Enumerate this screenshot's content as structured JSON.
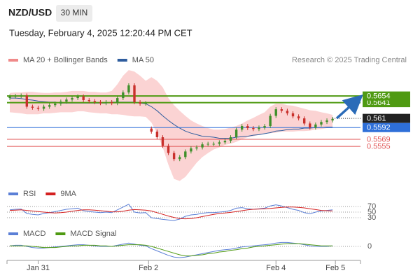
{
  "header": {
    "symbol": "NZD/USD",
    "timeframe": "30 MIN",
    "timestamp": "Tuesday, February 4, 2025 12:20:44 PM CET"
  },
  "chart_data": [
    {
      "type": "candlestick",
      "credit": "Research © 2025 Trading Central",
      "xlim": [
        -0.5,
        62.3
      ],
      "ylim": [
        0.5485,
        0.5712
      ],
      "up_color": "#3f8f2a",
      "down_color": "#c9302c",
      "open": [
        0.565,
        0.5653,
        0.5654,
        0.5655,
        0.5633,
        0.5631,
        0.5629,
        0.5633,
        0.5636,
        0.5639,
        0.5643,
        0.5647,
        0.565,
        0.5653,
        0.5646,
        0.5644,
        0.5642,
        0.564,
        0.5642,
        0.564,
        0.565,
        0.5661,
        0.5675,
        0.5642,
        0.5639,
        0.559,
        0.5584,
        0.5573,
        0.5556,
        0.5542,
        0.553,
        0.5534,
        0.5545,
        0.5551,
        0.5553,
        0.5559,
        0.556,
        0.556,
        0.5563,
        0.5566,
        0.5573,
        0.5588,
        0.5595,
        0.5591,
        0.5589,
        0.5592,
        0.5595,
        0.5615,
        0.5628,
        0.5625,
        0.562,
        0.5614,
        0.561,
        0.56,
        0.5592,
        0.5598,
        0.5603,
        0.5606
      ],
      "high": [
        0.5657,
        0.5658,
        0.5659,
        0.5659,
        0.5637,
        0.5635,
        0.5637,
        0.564,
        0.5643,
        0.5647,
        0.5651,
        0.5654,
        0.5657,
        0.5657,
        0.565,
        0.5648,
        0.5646,
        0.5646,
        0.5646,
        0.5654,
        0.5665,
        0.5679,
        0.5679,
        0.5646,
        0.5644,
        0.5594,
        0.5588,
        0.5577,
        0.556,
        0.5546,
        0.5538,
        0.5549,
        0.5555,
        0.5557,
        0.5563,
        0.5564,
        0.5564,
        0.5567,
        0.557,
        0.5577,
        0.5592,
        0.5599,
        0.5599,
        0.5595,
        0.5596,
        0.5599,
        0.5619,
        0.5632,
        0.5632,
        0.5629,
        0.5624,
        0.5618,
        0.5614,
        0.5604,
        0.5602,
        0.5607,
        0.561,
        0.5613
      ],
      "low": [
        0.5646,
        0.5649,
        0.565,
        0.5629,
        0.5627,
        0.5625,
        0.5625,
        0.5629,
        0.5632,
        0.5635,
        0.5639,
        0.5643,
        0.5646,
        0.5642,
        0.564,
        0.5638,
        0.5636,
        0.5636,
        0.5636,
        0.5636,
        0.5646,
        0.5657,
        0.5638,
        0.5635,
        0.5635,
        0.558,
        0.5569,
        0.5552,
        0.5538,
        0.5526,
        0.5526,
        0.553,
        0.5541,
        0.5547,
        0.5549,
        0.5555,
        0.5556,
        0.5556,
        0.5559,
        0.5562,
        0.5569,
        0.5584,
        0.5587,
        0.5585,
        0.5585,
        0.5588,
        0.5591,
        0.5611,
        0.5621,
        0.5616,
        0.561,
        0.5606,
        0.5596,
        0.5588,
        0.5588,
        0.5594,
        0.5599,
        0.5602
      ],
      "close": [
        0.5653,
        0.5654,
        0.5655,
        0.5633,
        0.5631,
        0.5629,
        0.5633,
        0.5636,
        0.5639,
        0.5643,
        0.5647,
        0.565,
        0.5653,
        0.5646,
        0.5644,
        0.5642,
        0.564,
        0.5642,
        0.564,
        0.565,
        0.5661,
        0.5675,
        0.5642,
        0.5639,
        0.564,
        0.5584,
        0.5573,
        0.5556,
        0.5542,
        0.553,
        0.5534,
        0.5545,
        0.5551,
        0.5553,
        0.5559,
        0.556,
        0.556,
        0.5563,
        0.5566,
        0.5573,
        0.5588,
        0.5595,
        0.5591,
        0.5589,
        0.5592,
        0.5595,
        0.5615,
        0.5628,
        0.5625,
        0.562,
        0.5614,
        0.561,
        0.56,
        0.5592,
        0.5598,
        0.5603,
        0.5606,
        0.5609
      ],
      "series": [
        {
          "name": "MA 20 + Bollinger Bands",
          "color": "#f08a8a",
          "fill": "#fbd3d3",
          "upper": [
            0.566,
            0.5661,
            0.5661,
            0.5662,
            0.5662,
            0.5661,
            0.566,
            0.566,
            0.5661,
            0.5661,
            0.5662,
            0.5664,
            0.5664,
            0.5664,
            0.5662,
            0.5662,
            0.5661,
            0.5661,
            0.5664,
            0.5677,
            0.5694,
            0.5705,
            0.5702,
            0.5694,
            0.5684,
            0.5691,
            0.5684,
            0.5671,
            0.565,
            0.5636,
            0.5625,
            0.5615,
            0.5606,
            0.56,
            0.5595,
            0.5591,
            0.5588,
            0.5588,
            0.5589,
            0.5592,
            0.5595,
            0.56,
            0.5606,
            0.5611,
            0.5617,
            0.5622,
            0.5633,
            0.5639,
            0.5639,
            0.5636,
            0.5635,
            0.5632,
            0.5629,
            0.5626,
            0.5625,
            0.5622,
            0.562,
            0.5617
          ],
          "lower": [
            0.5622,
            0.5621,
            0.562,
            0.5618,
            0.5618,
            0.5618,
            0.562,
            0.562,
            0.5621,
            0.5622,
            0.5622,
            0.5622,
            0.5624,
            0.5624,
            0.5622,
            0.5621,
            0.562,
            0.562,
            0.5618,
            0.5618,
            0.5617,
            0.5615,
            0.5614,
            0.5614,
            0.5613,
            0.5602,
            0.5581,
            0.5553,
            0.5519,
            0.5491,
            0.5487,
            0.5495,
            0.5509,
            0.5523,
            0.5534,
            0.5542,
            0.5549,
            0.5553,
            0.5558,
            0.556,
            0.5564,
            0.5569,
            0.5573,
            0.5575,
            0.5578,
            0.5581,
            0.5581,
            0.5582,
            0.5584,
            0.5584,
            0.5584,
            0.5585,
            0.5585,
            0.5586,
            0.5588,
            0.5589,
            0.5591,
            0.5592
          ]
        },
        {
          "name": "MA 50",
          "color": "#2f5d9e",
          "values": [
            0.565,
            0.565,
            0.5649,
            0.5647,
            0.5646,
            0.5644,
            0.5643,
            0.5642,
            0.5642,
            0.564,
            0.564,
            0.564,
            0.564,
            0.564,
            0.564,
            0.564,
            0.564,
            0.564,
            0.5642,
            0.5642,
            0.5642,
            0.5642,
            0.5642,
            0.564,
            0.5639,
            0.5633,
            0.5625,
            0.5615,
            0.5606,
            0.5598,
            0.5591,
            0.5585,
            0.5581,
            0.5578,
            0.5575,
            0.5574,
            0.5573,
            0.5571,
            0.5571,
            0.5571,
            0.5573,
            0.5574,
            0.5575,
            0.5577,
            0.5578,
            0.558,
            0.5582,
            0.5585,
            0.5586,
            0.5588,
            0.5589,
            0.5589,
            0.5591,
            0.5591,
            0.5592,
            0.5592,
            0.5593,
            0.5593
          ]
        }
      ],
      "levels": [
        {
          "value": 0.5641,
          "color": "#4f9a12",
          "line": "solid",
          "boxed": true
        },
        {
          "value": 0.5654,
          "color": "#4f9a12",
          "line": "solid",
          "boxed": true
        },
        {
          "value": 0.561,
          "color": "#222222",
          "line": "dotted",
          "boxed": true
        },
        {
          "value": 0.5592,
          "color": "#2e6fd8",
          "line": "solid",
          "boxed": true
        },
        {
          "value": 0.5569,
          "color": "#e05555",
          "line": "solid",
          "boxed": false
        },
        {
          "value": 0.5555,
          "color": "#e05555",
          "line": "solid",
          "boxed": false
        }
      ]
    },
    {
      "type": "line",
      "ylim": [
        10,
        85
      ],
      "yticks": [
        70,
        50,
        30
      ],
      "grid": "dotted",
      "series": [
        {
          "name": "RSI",
          "color": "#5b7fd6",
          "values": [
            58,
            60,
            61,
            45,
            42,
            40,
            45,
            48,
            52,
            56,
            60,
            62,
            64,
            55,
            52,
            50,
            48,
            50,
            48,
            58,
            68,
            78,
            50,
            47,
            48,
            30,
            27,
            24,
            22,
            20,
            25,
            35,
            40,
            42,
            46,
            48,
            48,
            50,
            52,
            56,
            64,
            66,
            62,
            60,
            62,
            64,
            72,
            76,
            72,
            66,
            60,
            56,
            48,
            44,
            50,
            54,
            56,
            58
          ]
        },
        {
          "name": "9MA",
          "color": "#d42020",
          "values": [
            56,
            57,
            58,
            56,
            54,
            52,
            50,
            48,
            47,
            48,
            50,
            53,
            56,
            58,
            58,
            57,
            55,
            53,
            51,
            51,
            53,
            57,
            59,
            58,
            57,
            54,
            48,
            42,
            36,
            31,
            27,
            26,
            27,
            30,
            34,
            38,
            42,
            45,
            47,
            49,
            52,
            55,
            58,
            60,
            61,
            62,
            63,
            65,
            67,
            68,
            68,
            67,
            65,
            62,
            59,
            56,
            55,
            54
          ]
        }
      ]
    },
    {
      "type": "line",
      "ylim": [
        -0.0025,
        0.0015
      ],
      "yticks": [
        0
      ],
      "grid": "dotted",
      "xticks": [
        {
          "value": 5,
          "label": "Jan 31"
        },
        {
          "value": 24.5,
          "label": "Feb 2"
        },
        {
          "value": 47,
          "label": "Feb 4"
        },
        {
          "value": 57.5,
          "label": "Feb 5"
        }
      ],
      "series": [
        {
          "name": "MACD",
          "color": "#5b7fd6",
          "values": [
            0.0001,
            0.0002,
            0.0002,
            0,
            -0.0002,
            -0.0003,
            -0.0003,
            -0.0002,
            -0.0001,
            0,
            0.0001,
            0.0002,
            0.0003,
            0.0003,
            0.0002,
            0.0001,
            0,
            0,
            0,
            0.0002,
            0.0004,
            0.0006,
            0.0004,
            0.0002,
            0.0001,
            -0.0004,
            -0.0008,
            -0.0012,
            -0.0016,
            -0.0019,
            -0.002,
            -0.0019,
            -0.0017,
            -0.0015,
            -0.0013,
            -0.0011,
            -0.0009,
            -0.0007,
            -0.0006,
            -0.0005,
            -0.0003,
            -0.0001,
            0,
            0.0001,
            0.0002,
            0.0003,
            0.0004,
            0.0006,
            0.0007,
            0.0007,
            0.0006,
            0.0005,
            0.0003,
            0.0001,
            0,
            0,
            0,
            0.0001
          ]
        },
        {
          "name": "MACD Signal",
          "color": "#4f9a12",
          "values": [
            0.0001,
            0.0001,
            0.0001,
            0.0001,
            0,
            -0.0001,
            -0.0002,
            -0.0002,
            -0.0002,
            -0.0001,
            0,
            0.0001,
            0.0001,
            0.0002,
            0.0002,
            0.0002,
            0.0001,
            0.0001,
            0,
            0.0001,
            0.0002,
            0.0003,
            0.0003,
            0.0003,
            0.0002,
            0,
            -0.0003,
            -0.0006,
            -0.0009,
            -0.0012,
            -0.0015,
            -0.0017,
            -0.0017,
            -0.0016,
            -0.0015,
            -0.0013,
            -0.0012,
            -0.001,
            -0.0009,
            -0.0007,
            -0.0006,
            -0.0004,
            -0.0003,
            -0.0001,
            0,
            0.0001,
            0.0002,
            0.0003,
            0.0004,
            0.0005,
            0.0005,
            0.0005,
            0.0004,
            0.0003,
            0.0002,
            0.0001,
            0.0001,
            0.0001
          ]
        }
      ]
    }
  ]
}
